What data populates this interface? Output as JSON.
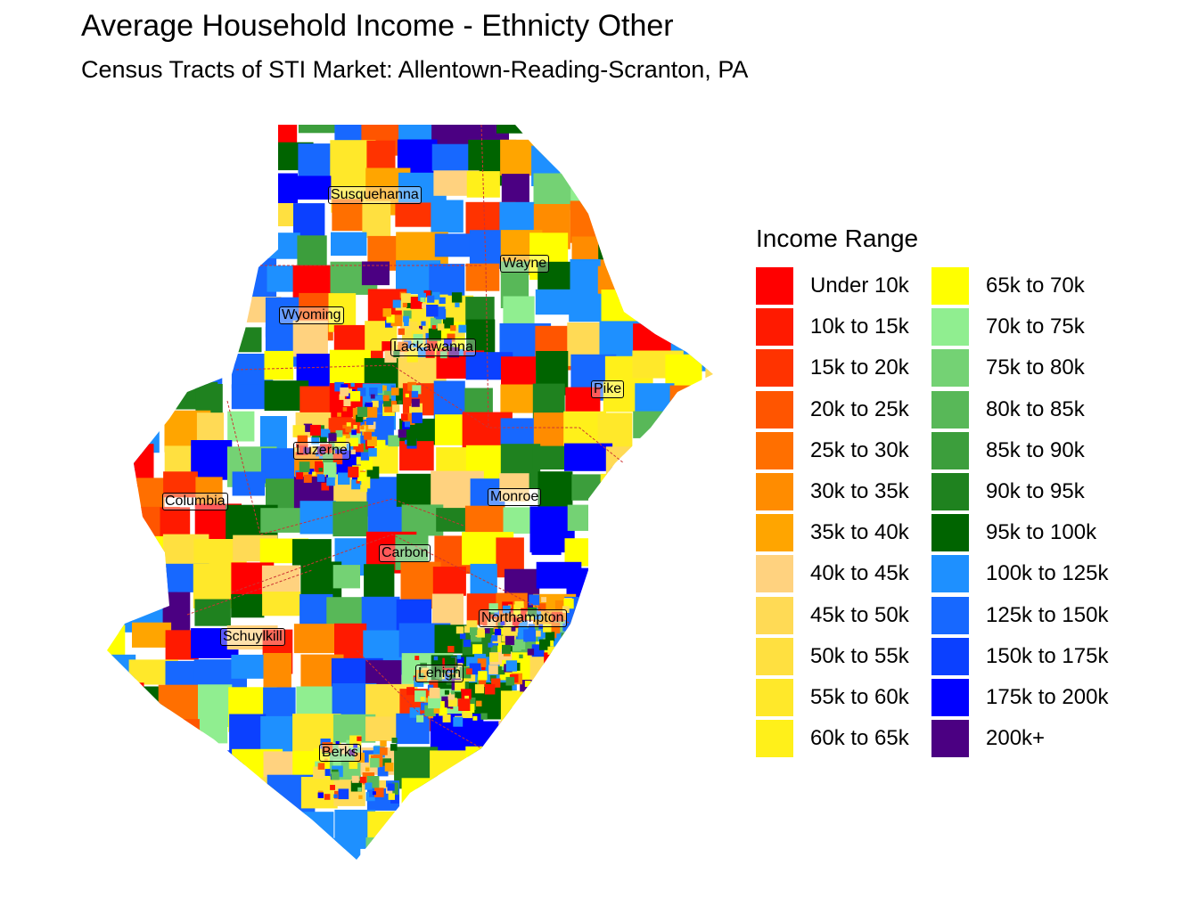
{
  "title": "Average Household Income - Ethnicty Other",
  "subtitle": "Census Tracts of STI Market: Allentown-Reading-Scranton, PA",
  "legend": {
    "title": "Income Range",
    "items": [
      {
        "label": "Under 10k",
        "color": "#FF0000"
      },
      {
        "label": "10k to 15k",
        "color": "#FF1A00"
      },
      {
        "label": "15k to 20k",
        "color": "#FF3300"
      },
      {
        "label": "20k to 25k",
        "color": "#FF5500"
      },
      {
        "label": "25k to 30k",
        "color": "#FF6F00"
      },
      {
        "label": "30k to 35k",
        "color": "#FF8C00"
      },
      {
        "label": "35k to 40k",
        "color": "#FFA500"
      },
      {
        "label": "40k to 45k",
        "color": "#FFD27F"
      },
      {
        "label": "45k to 50k",
        "color": "#FFDA55"
      },
      {
        "label": "50k to 55k",
        "color": "#FFE040"
      },
      {
        "label": "55k to 60k",
        "color": "#FFE82A"
      },
      {
        "label": "60k to 65k",
        "color": "#FFF01A"
      },
      {
        "label": "65k to 70k",
        "color": "#FFFF00"
      },
      {
        "label": "70k to 75k",
        "color": "#90EE90"
      },
      {
        "label": "75k to 80k",
        "color": "#74D274"
      },
      {
        "label": "80k to 85k",
        "color": "#58B858"
      },
      {
        "label": "85k to 90k",
        "color": "#3C9E3C"
      },
      {
        "label": "90k to 95k",
        "color": "#1F821F"
      },
      {
        "label": "95k to 100k",
        "color": "#006400"
      },
      {
        "label": "100k to 125k",
        "color": "#1E90FF"
      },
      {
        "label": "125k to 150k",
        "color": "#1768FF"
      },
      {
        "label": "150k to 175k",
        "color": "#0B40FF"
      },
      {
        "label": "175k to 200k",
        "color": "#0000FF"
      },
      {
        "label": "200k+",
        "color": "#4B0082"
      }
    ]
  },
  "counties": [
    "Susquehanna",
    "Wayne",
    "Wyoming",
    "Lackawanna",
    "Pike",
    "Luzerne",
    "Columbia",
    "Monroe",
    "Carbon",
    "Northampton",
    "Schuylkill",
    "Lehigh",
    "Berks"
  ],
  "border_color": "#CC3333"
}
